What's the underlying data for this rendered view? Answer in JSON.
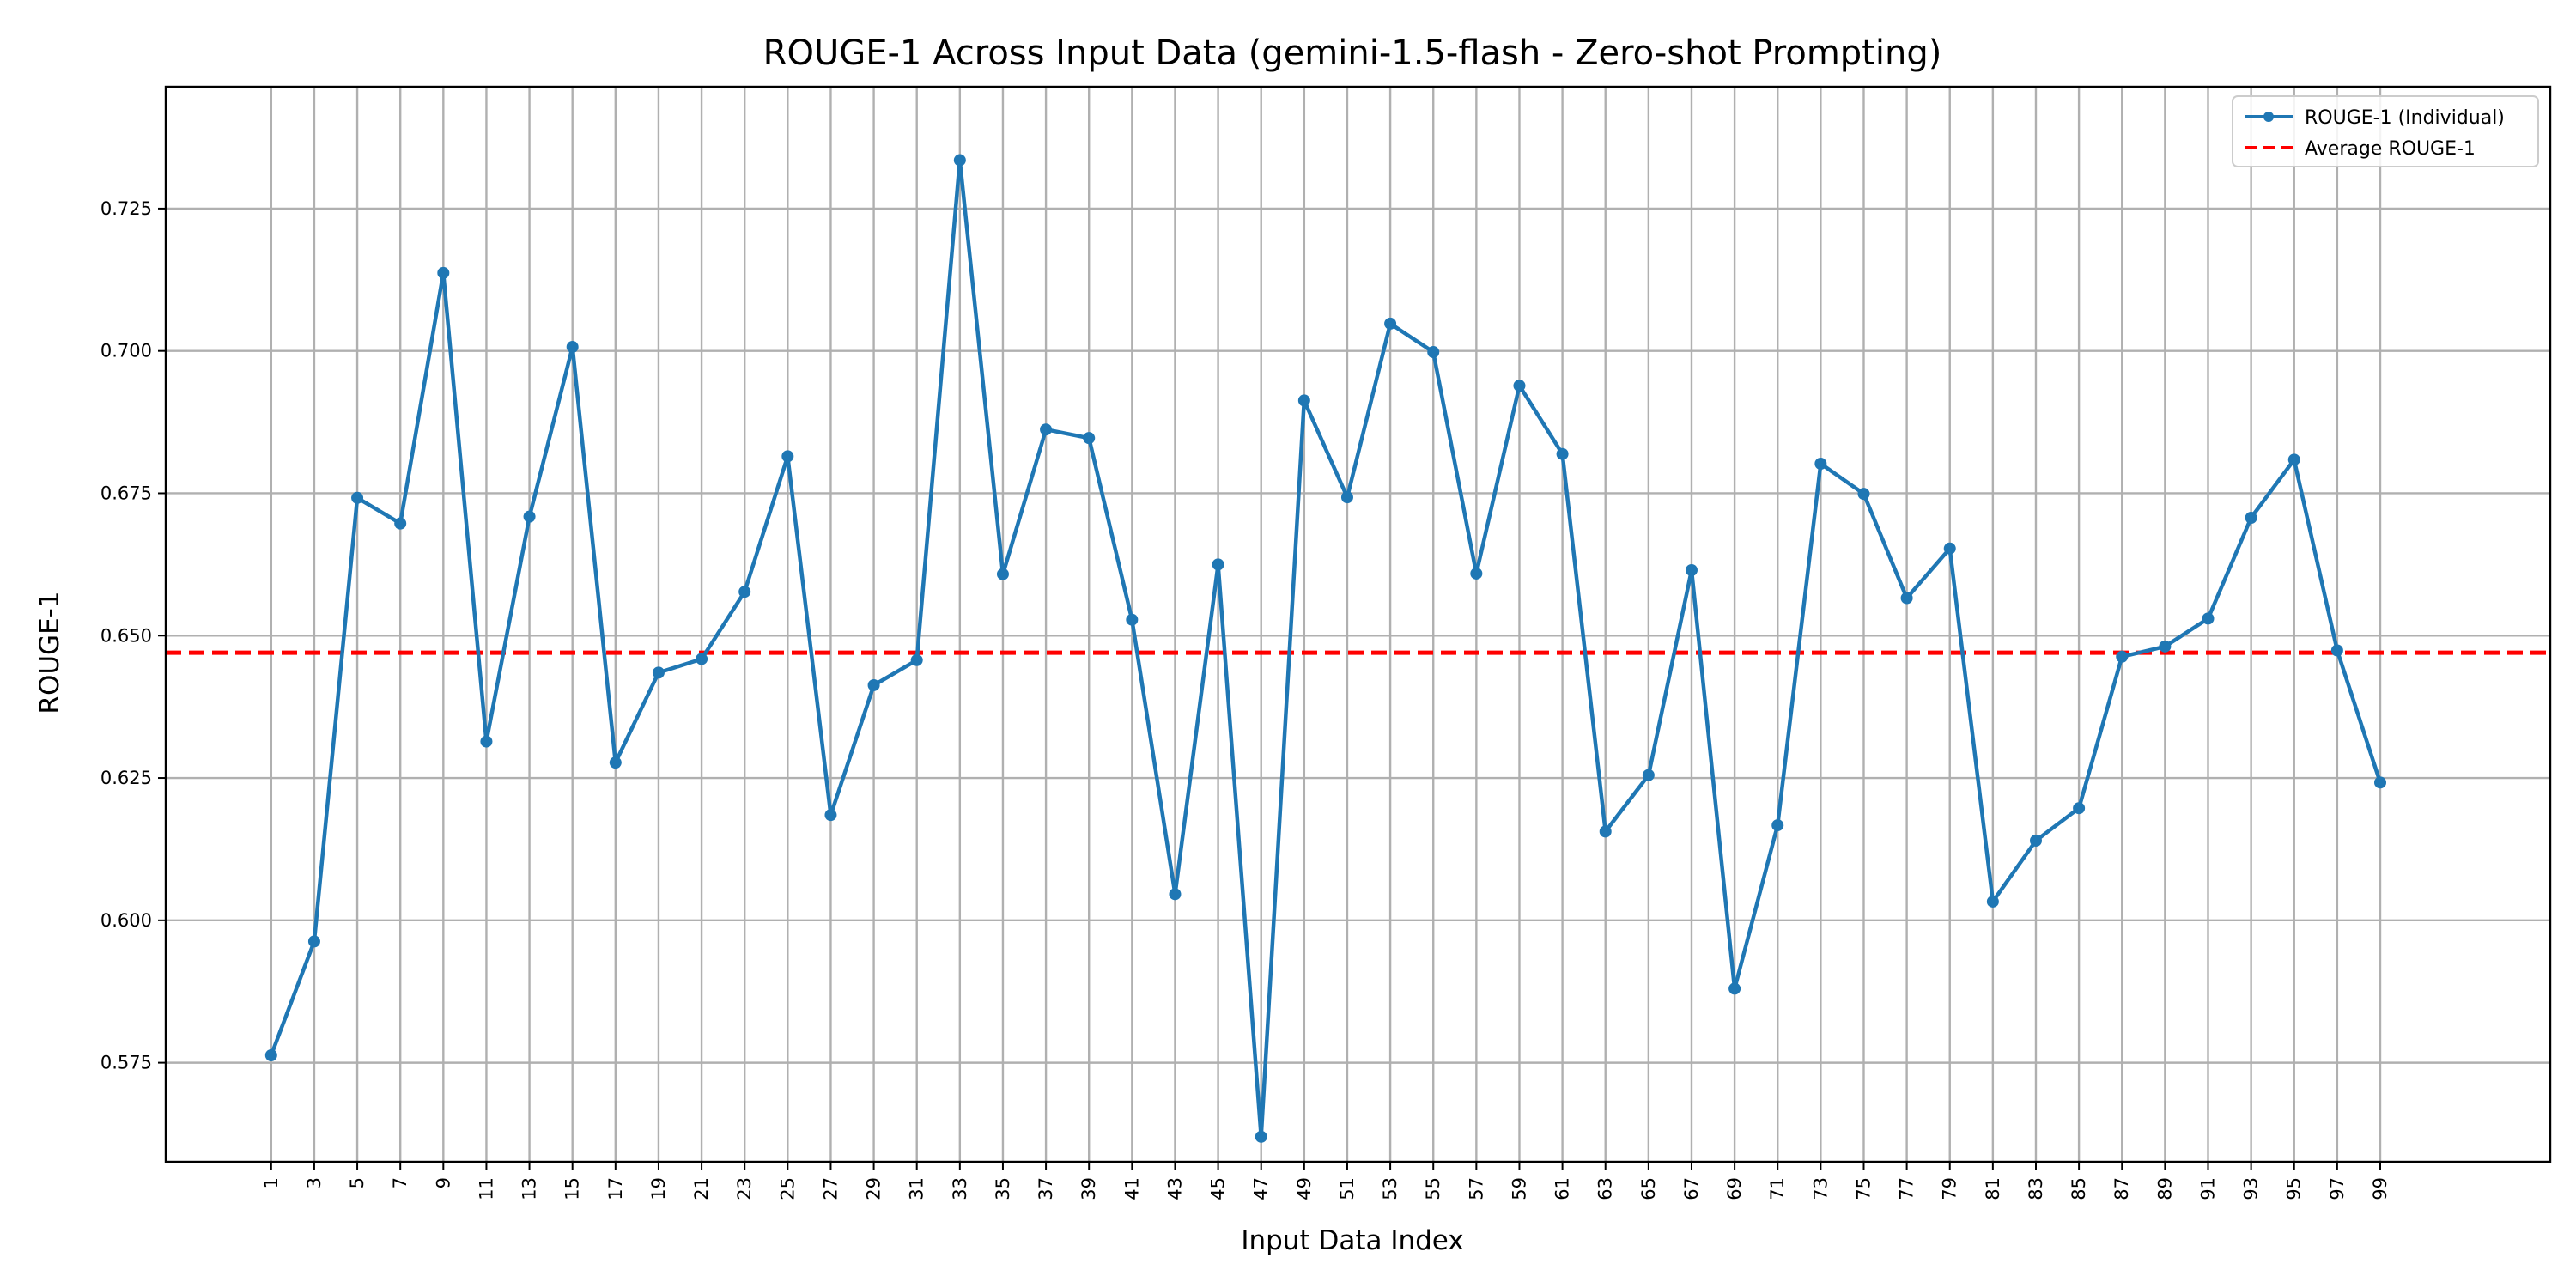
{
  "chart_data": {
    "type": "line",
    "title": "ROUGE-1 Across Input Data (gemini-1.5-flash - Zero-shot Prompting)",
    "xlabel": "Input Data Index",
    "ylabel": "ROUGE-1",
    "x": [
      1,
      3,
      5,
      7,
      9,
      11,
      13,
      15,
      17,
      19,
      21,
      23,
      25,
      27,
      29,
      31,
      33,
      35,
      37,
      39,
      41,
      43,
      45,
      47,
      49,
      51,
      53,
      55,
      57,
      59,
      61,
      63,
      65,
      67,
      69,
      71,
      73,
      75,
      77,
      79,
      81,
      83,
      85,
      87,
      89,
      91,
      93,
      95,
      97,
      99
    ],
    "xticks": [
      "1",
      "3",
      "5",
      "7",
      "9",
      "11",
      "13",
      "15",
      "17",
      "19",
      "21",
      "23",
      "25",
      "27",
      "29",
      "31",
      "33",
      "35",
      "37",
      "39",
      "41",
      "43",
      "45",
      "47",
      "49",
      "51",
      "53",
      "55",
      "57",
      "59",
      "61",
      "63",
      "65",
      "67",
      "69",
      "71",
      "73",
      "75",
      "77",
      "79",
      "81",
      "83",
      "85",
      "87",
      "89",
      "91",
      "93",
      "95",
      "97",
      "99"
    ],
    "yticks": [
      "0.575",
      "0.600",
      "0.625",
      "0.650",
      "0.675",
      "0.700",
      "0.725"
    ],
    "ytick_values": [
      0.575,
      0.6,
      0.625,
      0.65,
      0.675,
      0.7,
      0.725
    ],
    "xlim": [
      -3.9,
      106.9
    ],
    "ylim": [
      0.5576,
      0.7464
    ],
    "grid": true,
    "legend_position": "top-right",
    "series": [
      {
        "name": "ROUGE-1 (Individual)",
        "color": "#1f77b4",
        "style": "solid-line-with-markers",
        "values": [
          0.5763,
          0.5963,
          0.6742,
          0.6697,
          0.7137,
          0.6314,
          0.6709,
          0.7007,
          0.6277,
          0.6435,
          0.6459,
          0.6577,
          0.6815,
          0.6185,
          0.6413,
          0.6457,
          0.7335,
          0.6608,
          0.6862,
          0.6847,
          0.6528,
          0.6046,
          0.6625,
          0.562,
          0.6913,
          0.6743,
          0.7048,
          0.6998,
          0.6609,
          0.6939,
          0.6819,
          0.6156,
          0.6255,
          0.6615,
          0.588,
          0.6167,
          0.6802,
          0.6749,
          0.6566,
          0.6653,
          0.6033,
          0.614,
          0.6197,
          0.6463,
          0.6481,
          0.653,
          0.6707,
          0.6809,
          0.6474,
          0.6242
        ]
      },
      {
        "name": "Average ROUGE-1",
        "color": "#ff0000",
        "style": "dashed",
        "value": 0.647
      }
    ]
  }
}
